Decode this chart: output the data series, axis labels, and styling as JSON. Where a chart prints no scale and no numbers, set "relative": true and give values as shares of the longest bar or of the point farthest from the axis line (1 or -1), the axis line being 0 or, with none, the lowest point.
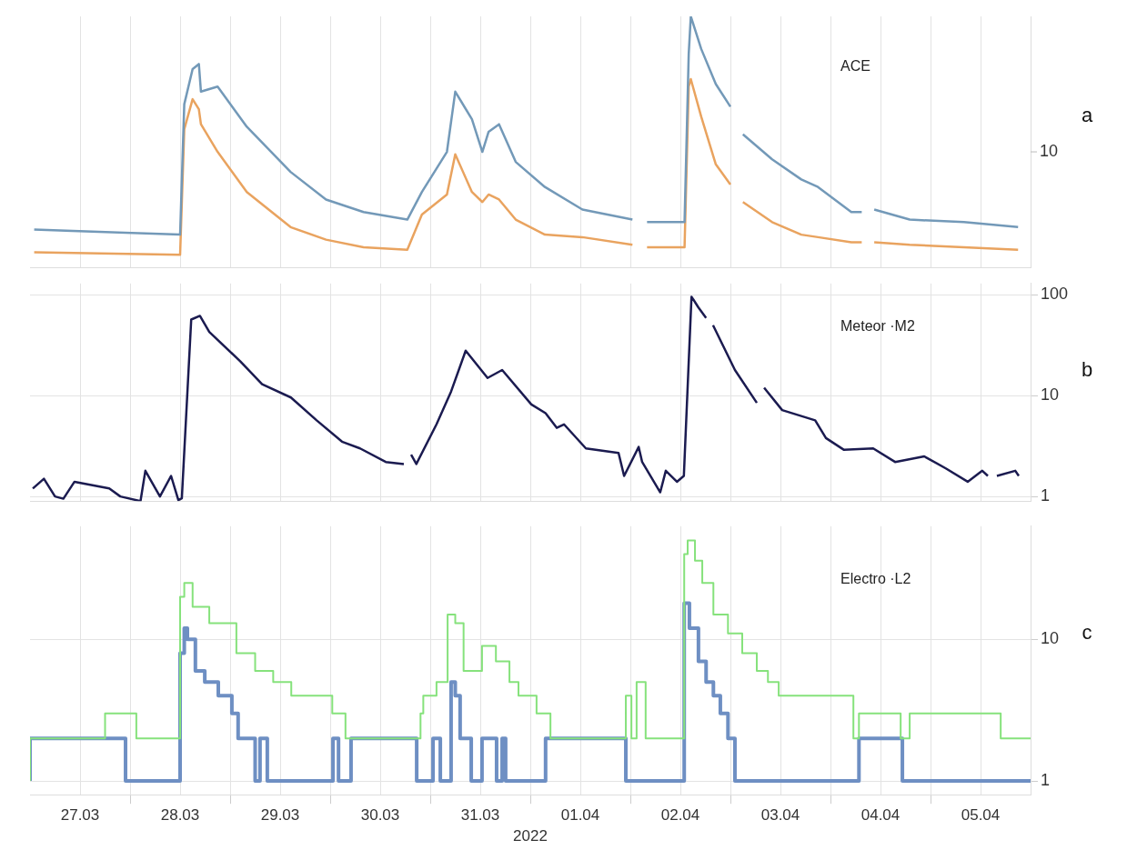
{
  "chart_data": [
    {
      "type": "line",
      "title": "ACE",
      "relative": true,
      "grid": "x",
      "tick_labels": false,
      "annotations": [
        "a",
        "10"
      ],
      "xlim": [
        "2022-03-27",
        "2022-04-06"
      ],
      "xticks": [
        "2022-03-27T12:00",
        "2022-03-28",
        "2022-03-28T12:00",
        "2022-03-29",
        "2022-03-29T12:00",
        "2022-03-30",
        "2022-03-30T12:00",
        "2022-03-31",
        "2022-03-31T12:00",
        "2022-04-01",
        "2022-04-01T12:00",
        "2022-04-02",
        "2022-04-02T12:00",
        "2022-04-03",
        "2022-04-03T12:00",
        "2022-04-04",
        "2022-04-04T12:00",
        "2022-04-05",
        "2022-04-05T12:00"
      ],
      "x": [
        "2022-03-27T01:00",
        "2022-03-28T12:00",
        "2022-03-28T13:00",
        "2022-03-28T15:00",
        "2022-03-28T16:30",
        "2022-03-28T17:00",
        "2022-03-28T21:00",
        "2022-03-29T04:00",
        "2022-03-29T14:30",
        "2022-03-29T23:00",
        "2022-03-30T08:00",
        "2022-03-30T18:30",
        "2022-03-30T22:00",
        "2022-03-31T04:00",
        "2022-03-31T06:00",
        "2022-03-31T10:00",
        "2022-03-31T12:30",
        "2022-03-31T14:00",
        "2022-03-31T16:30",
        "2022-03-31T20:30",
        "2022-04-01T03:30",
        "2022-04-01T12:30",
        "2022-04-02T00:30",
        "2022-04-02T02:00",
        "2022-04-02T04:00",
        "2022-04-02T13:00",
        "2022-04-02T14:00",
        "2022-04-02T14:30",
        "2022-04-02T17:00",
        "2022-04-02T20:30",
        "2022-04-03T00:00",
        "2022-04-03T01:30",
        "2022-04-03T03:00",
        "2022-04-03T10:00",
        "2022-04-03T17:00",
        "2022-04-03T21:00",
        "2022-04-04T05:00",
        "2022-04-04T07:30",
        "2022-04-04T09:00",
        "2022-04-04T10:30",
        "2022-04-04T19:00",
        "2022-04-05T08:00",
        "2022-04-05T21:00"
      ],
      "series": [
        {
          "color": "#7399b8",
          "values": [
            0.15,
            0.13,
            0.65,
            0.79,
            0.81,
            0.7,
            0.72,
            0.56,
            0.38,
            0.27,
            0.22,
            0.19,
            0.3,
            0.46,
            0.7,
            0.59,
            0.46,
            0.54,
            0.57,
            0.42,
            0.32,
            0.23,
            0.19,
            null,
            0.18,
            0.18,
            0.85,
            1,
            0.87,
            0.73,
            0.64,
            null,
            0.53,
            0.43,
            0.35,
            0.32,
            0.22,
            0.22,
            null,
            0.23,
            0.19,
            0.18,
            0.16
          ]
        },
        {
          "color": "#e9a35f",
          "values": [
            0.06,
            0.05,
            0.55,
            0.67,
            0.63,
            0.57,
            0.46,
            0.3,
            0.16,
            0.11,
            0.08,
            0.07,
            0.21,
            0.29,
            0.45,
            0.3,
            0.26,
            0.29,
            0.27,
            0.19,
            0.13,
            0.12,
            0.09,
            null,
            0.08,
            0.08,
            0.72,
            0.75,
            0.6,
            0.41,
            0.33,
            null,
            0.26,
            0.18,
            0.13,
            0.12,
            0.1,
            0.1,
            null,
            0.1,
            0.09,
            0.08,
            0.07
          ]
        }
      ]
    },
    {
      "type": "line",
      "title": "Meteor ·M2",
      "log": true,
      "grid": true,
      "tick_labels": "y",
      "annotations": [
        "b"
      ],
      "xlim": [
        "2022-03-27",
        "2022-04-06"
      ],
      "xticks": [
        "2022-03-27T12:00",
        "2022-03-28",
        "2022-03-28T12:00",
        "2022-03-29",
        "2022-03-29T12:00",
        "2022-03-30",
        "2022-03-30T12:00",
        "2022-03-31",
        "2022-03-31T12:00",
        "2022-04-01",
        "2022-04-01T12:00",
        "2022-04-02",
        "2022-04-02T12:00",
        "2022-04-03",
        "2022-04-03T12:00",
        "2022-04-04",
        "2022-04-04T12:00",
        "2022-04-05",
        "2022-04-05T12:00"
      ],
      "ylim": [
        0.9,
        130
      ],
      "yticks": [
        1,
        10,
        100
      ],
      "x": [
        "2022-03-27T00:40",
        "2022-03-27T03:20",
        "2022-03-27T06:00",
        "2022-03-27T08:00",
        "2022-03-27T10:40",
        "2022-03-27T19:00",
        "2022-03-27T21:40",
        "2022-03-28T02:30",
        "2022-03-28T03:40",
        "2022-03-28T07:10",
        "2022-03-28T09:50",
        "2022-03-28T11:35",
        "2022-03-28T12:25",
        "2022-03-28T14:40",
        "2022-03-28T16:45",
        "2022-03-28T19:00",
        "2022-03-29T02:25",
        "2022-03-29T07:40",
        "2022-03-29T14:35",
        "2022-03-29T20:45",
        "2022-03-30T02:50",
        "2022-03-30T07:10",
        "2022-03-30T13:20",
        "2022-03-30T17:40",
        "2022-03-30T18:30",
        "2022-03-30T19:25",
        "2022-03-30T20:40",
        "2022-03-31T01:30",
        "2022-03-31T05:00",
        "2022-03-31T08:30",
        "2022-03-31T13:45",
        "2022-03-31T17:15",
        "2022-04-01T00:15",
        "2022-04-01T03:40",
        "2022-04-01T06:20",
        "2022-04-01T08:05",
        "2022-04-01T13:20",
        "2022-04-01T21:10",
        "2022-04-01T22:30",
        "2022-04-02T02:00",
        "2022-04-02T02:50",
        "2022-04-02T07:10",
        "2022-04-02T08:30",
        "2022-04-02T11:10",
        "2022-04-02T12:50",
        "2022-04-02T14:40",
        "2022-04-02T16:20",
        "2022-04-02T18:10",
        "2022-04-02T19:00",
        "2022-04-02T19:50",
        "2022-04-03T01:05",
        "2022-04-03T06:20",
        "2022-04-03T07:10",
        "2022-04-03T08:05",
        "2022-04-03T12:25",
        "2022-04-03T20:20",
        "2022-04-03T22:55",
        "2022-04-04T03:15",
        "2022-04-04T10:15",
        "2022-04-04T15:30",
        "2022-04-04T22:30",
        "2022-04-05T03:40",
        "2022-04-05T08:55",
        "2022-04-05T12:25",
        "2022-04-05T13:45",
        "2022-04-05T14:50",
        "2022-04-05T15:55",
        "2022-04-05T20:20",
        "2022-04-05T21:10"
      ],
      "series": [
        {
          "color": "#1b1b50",
          "values": [
            1.2,
            1.5,
            1.0,
            0.95,
            1.4,
            1.2,
            1.0,
            0.9,
            1.8,
            1.0,
            1.6,
            0.92,
            0.96,
            57,
            62,
            43,
            22,
            13,
            9.6,
            5.7,
            3.5,
            3.0,
            2.2,
            2.1,
            null,
            2.6,
            2.1,
            5.2,
            11,
            28,
            15,
            18,
            8.2,
            6.7,
            4.8,
            5.2,
            3.0,
            2.7,
            1.6,
            3.1,
            2.2,
            1.1,
            1.8,
            1.4,
            1.6,
            96,
            75,
            59,
            null,
            50,
            18,
            8.5,
            null,
            12,
            7.2,
            5.7,
            3.8,
            2.9,
            3.0,
            2.2,
            2.5,
            1.9,
            1.4,
            1.8,
            1.6,
            null,
            1.6,
            1.8,
            1.6
          ]
        }
      ]
    },
    {
      "type": "step",
      "title": "Electro ·L2",
      "log": true,
      "grid": true,
      "xlabel": "2022",
      "annotations": [
        "c"
      ],
      "xlim": [
        "2022-03-27",
        "2022-04-06"
      ],
      "xticks": [
        {
          "value": "2022-03-27T12:00",
          "label": "27.03"
        },
        {
          "value": "2022-03-28",
          "label": null
        },
        {
          "value": "2022-03-28T12:00",
          "label": "28.03"
        },
        {
          "value": "2022-03-29",
          "label": null
        },
        {
          "value": "2022-03-29T12:00",
          "label": "29.03"
        },
        {
          "value": "2022-03-30",
          "label": null
        },
        {
          "value": "2022-03-30T12:00",
          "label": "30.03"
        },
        {
          "value": "2022-03-31",
          "label": null
        },
        {
          "value": "2022-03-31T12:00",
          "label": "31.03"
        },
        {
          "value": "2022-04-01",
          "label": null
        },
        {
          "value": "2022-04-01T12:00",
          "label": "01.04"
        },
        {
          "value": "2022-04-02",
          "label": null
        },
        {
          "value": "2022-04-02T12:00",
          "label": "02.04"
        },
        {
          "value": "2022-04-03",
          "label": null
        },
        {
          "value": "2022-04-03T12:00",
          "label": "03.04"
        },
        {
          "value": "2022-04-04",
          "label": null
        },
        {
          "value": "2022-04-04T12:00",
          "label": "04.04"
        },
        {
          "value": "2022-04-05",
          "label": null
        },
        {
          "value": "2022-04-05T12:00",
          "label": "05.04"
        }
      ],
      "ylim": [
        0.8,
        63
      ],
      "yticks": [
        1,
        10
      ],
      "series": [
        {
          "color": "#86e27c",
          "x": [
            "2022-03-27T00:00",
            "2022-03-27T18:00",
            "2022-03-28T01:30",
            "2022-03-28T06:20",
            "2022-03-28T12:00",
            "2022-03-28T13:00",
            "2022-03-28T15:00",
            "2022-03-28T19:00",
            "2022-03-29T01:30",
            "2022-03-29T06:00",
            "2022-03-29T10:20",
            "2022-03-29T14:40",
            "2022-03-29T19:00",
            "2022-03-30T00:30",
            "2022-03-30T03:40",
            "2022-03-30T06:20",
            "2022-03-30T21:40",
            "2022-03-30T22:20",
            "2022-03-31T01:30",
            "2022-03-31T04:10",
            "2022-03-31T06:00",
            "2022-03-31T08:00",
            "2022-03-31T12:25",
            "2022-03-31T15:45",
            "2022-03-31T19:00",
            "2022-03-31T21:10",
            "2022-04-01T01:30",
            "2022-04-01T04:50",
            "2022-04-01T06:20",
            "2022-04-01T22:55",
            "2022-04-02T00:15",
            "2022-04-02T01:30",
            "2022-04-02T03:40",
            "2022-04-02T05:00",
            "2022-04-02T12:55",
            "2022-04-02T13:45",
            "2022-04-02T15:30",
            "2022-04-02T17:15",
            "2022-04-02T19:55",
            "2022-04-02T23:25",
            "2022-04-03T02:50",
            "2022-04-03T06:20",
            "2022-04-03T09:00",
            "2022-04-03T11:35",
            "2022-04-04T05:30",
            "2022-04-04T06:50",
            "2022-04-04T16:50",
            "2022-04-04T19:00",
            "2022-04-05T16:50",
            "2022-04-05T22:15",
            "2022-04-06T00:00"
          ],
          "values": [
            1,
            2,
            3,
            2,
            2,
            20,
            25,
            17,
            13,
            8,
            6,
            5,
            4,
            4,
            3,
            2,
            2,
            3,
            4,
            5,
            15,
            13,
            6,
            9,
            7,
            5,
            4,
            3,
            2,
            2,
            4,
            2,
            5,
            2,
            2,
            40,
            50,
            36,
            25,
            15,
            11,
            8,
            6,
            5,
            4,
            2,
            3,
            2,
            3,
            2,
            2
          ]
        },
        {
          "color": "#6e8fc3",
          "x": [
            "2022-03-27T00:00",
            "2022-03-27T22:55",
            "2022-03-28T06:20",
            "2022-03-28T12:00",
            "2022-03-28T13:00",
            "2022-03-28T13:45",
            "2022-03-28T15:40",
            "2022-03-28T17:55",
            "2022-03-28T21:10",
            "2022-03-29T00:25",
            "2022-03-29T01:55",
            "2022-03-29T06:00",
            "2022-03-29T07:10",
            "2022-03-29T08:55",
            "2022-03-30T00:40",
            "2022-03-30T02:00",
            "2022-03-30T05:00",
            "2022-03-30T20:45",
            "2022-03-31T00:40",
            "2022-03-31T02:25",
            "2022-03-31T05:00",
            "2022-03-31T06:00",
            "2022-03-31T07:10",
            "2022-03-31T09:50",
            "2022-03-31T12:25",
            "2022-03-31T15:55",
            "2022-03-31T17:15",
            "2022-03-31T18:05",
            "2022-04-01T03:40",
            "2022-04-01T22:55",
            "2022-04-02T05:55",
            "2022-04-02T12:55",
            "2022-04-02T14:10",
            "2022-04-02T16:20",
            "2022-04-02T18:10",
            "2022-04-02T19:55",
            "2022-04-02T21:35",
            "2022-04-02T23:25",
            "2022-04-03T01:05",
            "2022-04-04T06:50",
            "2022-04-04T17:15",
            "2022-04-05T00:15",
            "2022-04-06T00:00"
          ],
          "values": [
            1,
            2,
            1,
            1,
            8,
            12,
            10,
            6,
            5,
            4,
            3,
            2,
            1,
            2,
            1,
            2,
            1,
            2,
            1,
            2,
            1,
            5,
            4,
            2,
            1,
            2,
            1,
            2,
            1,
            2,
            1,
            1,
            18,
            12,
            7,
            5,
            4,
            3,
            2,
            1,
            2,
            1,
            1
          ]
        }
      ]
    }
  ]
}
